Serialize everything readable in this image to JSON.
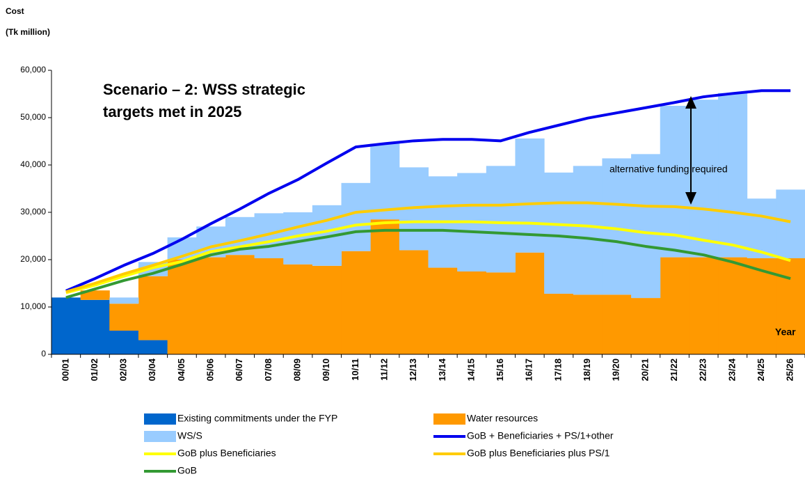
{
  "chart_data": {
    "type": "bar",
    "title": [
      "Scenario – 2: WSS strategic",
      "targets met in 2025"
    ],
    "ylabel": [
      "Cost",
      "(Tk million)"
    ],
    "xlabel": "Year",
    "annotation": "alternative funding required",
    "categories": [
      "00/01",
      "01/02",
      "02/03",
      "03/04",
      "04/05",
      "05/06",
      "06/07",
      "07/08",
      "08/09",
      "09/10",
      "10/11",
      "11/12",
      "12/13",
      "13/14",
      "14/15",
      "15/16",
      "16/17",
      "17/18",
      "18/19",
      "19/20",
      "20/21",
      "21/22",
      "22/23",
      "23/24",
      "24/25",
      "25/26"
    ],
    "ylim": [
      0,
      60000
    ],
    "yticks": [
      0,
      {
        "value": 10000,
        "label": "10,000"
      },
      {
        "value": 20000,
        "label": "20,000"
      },
      {
        "value": 30000,
        "label": "30,000"
      },
      {
        "value": 40000,
        "label": "40,000"
      },
      {
        "value": 50000,
        "label": "50,000"
      },
      {
        "value": 60000,
        "label": "60,000"
      }
    ],
    "series": [
      {
        "name": "Existing commitments under the FYP",
        "type": "bar",
        "color": "#0066cc",
        "values": [
          12000,
          11500,
          5000,
          3000,
          0,
          0,
          0,
          0,
          0,
          0,
          0,
          0,
          0,
          0,
          0,
          0,
          0,
          0,
          0,
          0,
          0,
          0,
          0,
          0,
          0,
          0
        ]
      },
      {
        "name": "Water resources",
        "type": "bar",
        "color": "#ff9900",
        "values": [
          0,
          2000,
          5700,
          13500,
          20000,
          20500,
          21000,
          20300,
          19000,
          18700,
          21800,
          28500,
          22000,
          18300,
          17500,
          17300,
          21500,
          12800,
          12600,
          12600,
          11900,
          20500,
          20500,
          20500,
          20300,
          20300
        ]
      },
      {
        "name": "WS/S",
        "type": "bar",
        "color": "#99ccff",
        "values": [
          0,
          0,
          1300,
          3000,
          4700,
          6500,
          8000,
          9500,
          11000,
          12800,
          14400,
          16000,
          17500,
          19300,
          20800,
          22500,
          24100,
          25600,
          27200,
          28800,
          30400,
          32000,
          33300,
          34700,
          12600,
          14500
        ]
      },
      {
        "name": "GoB + Beneficiaries + PS/1+other",
        "type": "line",
        "color": "#0000ee",
        "values": [
          13400,
          16000,
          18800,
          21300,
          24300,
          27600,
          30700,
          34000,
          36900,
          40400,
          43800,
          44500,
          45100,
          45400,
          45400,
          45100,
          46900,
          48400,
          49900,
          51000,
          52100,
          53200,
          54400,
          55100,
          55700,
          55700
        ]
      },
      {
        "name": "GoB plus Beneficiaries",
        "type": "line",
        "color": "#ffff00",
        "values": [
          13000,
          14600,
          16500,
          18300,
          19600,
          21700,
          22700,
          23800,
          25000,
          26000,
          27300,
          27800,
          28000,
          28000,
          28000,
          27800,
          27700,
          27400,
          27100,
          26500,
          25700,
          25200,
          24100,
          23100,
          21600,
          19800
        ]
      },
      {
        "name": "GoB plus Beneficiaries plus PS/1",
        "type": "line",
        "color": "#ffcc00",
        "values": [
          13200,
          15000,
          17000,
          18800,
          20700,
          22700,
          24000,
          25400,
          26900,
          28300,
          30000,
          30500,
          31000,
          31300,
          31500,
          31500,
          31800,
          32000,
          32000,
          31700,
          31300,
          31200,
          30700,
          30000,
          29200,
          28000
        ]
      },
      {
        "name": "GoB",
        "type": "line",
        "color": "#339933",
        "values": [
          12000,
          13800,
          15600,
          17100,
          19000,
          21000,
          22200,
          22800,
          23800,
          24800,
          25900,
          26200,
          26200,
          26200,
          25900,
          25600,
          25300,
          25000,
          24500,
          23800,
          22800,
          22000,
          21000,
          19500,
          17700,
          16000
        ]
      }
    ]
  }
}
